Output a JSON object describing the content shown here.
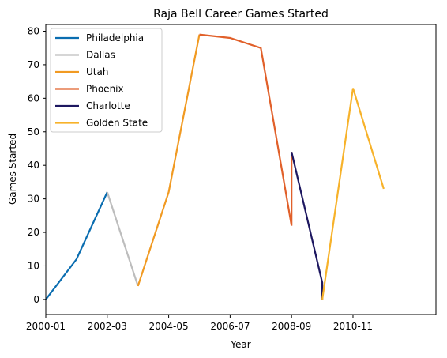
{
  "chart_data": {
    "type": "line",
    "title": "Raja Bell Career Games Started",
    "xlabel": "Year",
    "ylabel": "Games Started",
    "x_tick_labels": [
      "2000-01",
      "2002-03",
      "2004-05",
      "2006-07",
      "2008-09",
      "2010-11"
    ],
    "xlim": [
      2000,
      2012.7
    ],
    "y_ticks": [
      0,
      10,
      20,
      30,
      40,
      50,
      60,
      70,
      80
    ],
    "ylim": [
      -4.5,
      82
    ],
    "grid": false,
    "legend_position": "top-left",
    "series": [
      {
        "name": "Philadelphia",
        "color": "#0a6db0",
        "points": [
          [
            2000,
            0
          ],
          [
            2001,
            12
          ],
          [
            2002,
            32
          ]
        ]
      },
      {
        "name": "Dallas",
        "color": "#bdbdbd",
        "points": [
          [
            2002,
            32
          ],
          [
            2003,
            4
          ]
        ]
      },
      {
        "name": "Utah",
        "color": "#f19a22",
        "points": [
          [
            2003,
            4
          ],
          [
            2004,
            32
          ],
          [
            2005,
            79
          ]
        ]
      },
      {
        "name": "Phoenix",
        "color": "#e1602a",
        "points": [
          [
            2005,
            79
          ],
          [
            2006,
            78
          ],
          [
            2007,
            75
          ],
          [
            2008,
            22
          ],
          [
            2008,
            44
          ]
        ]
      },
      {
        "name": "Charlotte",
        "color": "#1d1760",
        "points": [
          [
            2008,
            44
          ],
          [
            2009,
            5
          ],
          [
            2009,
            0
          ]
        ]
      },
      {
        "name": "Golden State",
        "color": "#f7b22a",
        "points": [
          [
            2009,
            0
          ],
          [
            2010,
            63
          ],
          [
            2011,
            33
          ]
        ]
      }
    ]
  }
}
